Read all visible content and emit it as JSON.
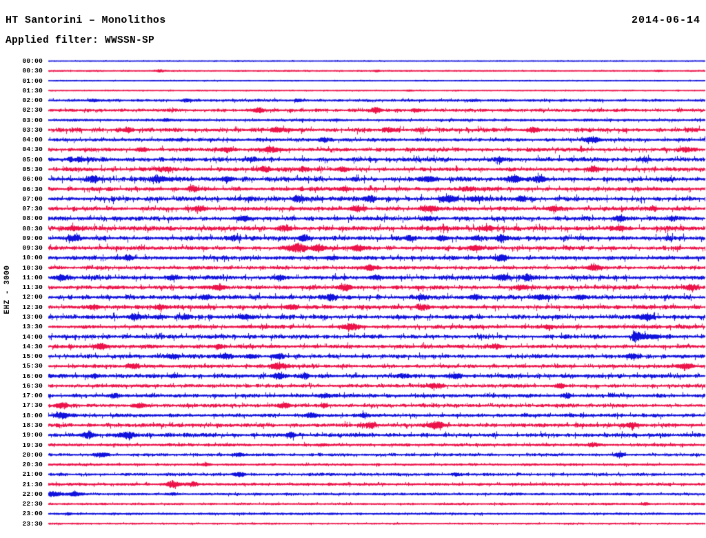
{
  "header": {
    "station_title": "HT Santorini – Monolithos",
    "date": "2014-06-14",
    "filter_label": "Applied filter: WWSSN-SP"
  },
  "axis": {
    "left_label": "EHZ - 3000"
  },
  "chart_data": {
    "type": "line",
    "subtype": "helicorder-seismogram",
    "title": "HT Santorini - Monolithos",
    "station": "Santorini - Monolithos",
    "network": "HT",
    "channel": "EHZ",
    "gain": "3000",
    "date": "2014-06-14",
    "filter": "WWSSN-SP",
    "row_interval_minutes": 30,
    "x_range_minutes": [
      0,
      30
    ],
    "legend_position": "none",
    "grid": false,
    "colors": {
      "blue": "#0f10dc",
      "red": "#ec1148",
      "text": "#000000",
      "background": "#ffffff"
    },
    "rows": [
      {
        "t": "00:00",
        "c": "b",
        "n": 0.2,
        "ev": []
      },
      {
        "t": "00:30",
        "c": "r",
        "n": 0.3,
        "ev": [
          [
            0.17,
            1.5,
            4
          ],
          [
            0.5,
            1.2,
            3
          ],
          [
            0.93,
            1.0,
            3
          ]
        ]
      },
      {
        "t": "01:00",
        "c": "b",
        "n": 0.2,
        "ev": []
      },
      {
        "t": "01:30",
        "c": "r",
        "n": 0.25,
        "ev": [
          [
            0.55,
            0.8,
            3
          ]
        ]
      },
      {
        "t": "02:00",
        "c": "b",
        "n": 0.8,
        "ev": [
          [
            0.07,
            1.5,
            5
          ],
          [
            0.21,
            1.5,
            4
          ],
          [
            0.38,
            1.5,
            4
          ],
          [
            0.65,
            1.0,
            4
          ]
        ]
      },
      {
        "t": "02:30",
        "c": "r",
        "n": 1.0,
        "ev": [
          [
            0.32,
            3.0,
            6
          ],
          [
            0.5,
            3.5,
            5
          ],
          [
            0.56,
            2.5,
            5
          ]
        ]
      },
      {
        "t": "03:00",
        "c": "b",
        "n": 0.8,
        "ev": [
          [
            0.18,
            1.5,
            5
          ],
          [
            0.44,
            1.2,
            4
          ]
        ]
      },
      {
        "t": "03:30",
        "c": "r",
        "n": 1.6,
        "ev": [
          [
            0.12,
            2.0,
            6
          ],
          [
            0.35,
            2.0,
            8
          ],
          [
            0.52,
            2.0,
            6
          ],
          [
            0.74,
            2.2,
            6
          ]
        ]
      },
      {
        "t": "04:00",
        "c": "b",
        "n": 1.2,
        "ev": [
          [
            0.42,
            2.0,
            6
          ],
          [
            0.83,
            3.5,
            7
          ]
        ]
      },
      {
        "t": "04:30",
        "c": "r",
        "n": 1.4,
        "ev": [
          [
            0.14,
            2.0,
            5
          ],
          [
            0.27,
            2.5,
            6
          ],
          [
            0.34,
            3.5,
            7
          ],
          [
            0.97,
            2.5,
            6
          ]
        ]
      },
      {
        "t": "05:00",
        "c": "b",
        "n": 1.6,
        "ev": [
          [
            0.05,
            2.0,
            10
          ],
          [
            0.31,
            2.0,
            6
          ],
          [
            0.69,
            2.0,
            6
          ],
          [
            0.91,
            2.0,
            5
          ]
        ]
      },
      {
        "t": "05:30",
        "c": "r",
        "n": 1.5,
        "ev": [
          [
            0.18,
            3.0,
            6
          ],
          [
            0.33,
            3.0,
            6
          ],
          [
            0.39,
            2.5,
            5
          ],
          [
            0.45,
            2.5,
            5
          ],
          [
            0.83,
            3.0,
            6
          ]
        ]
      },
      {
        "t": "06:00",
        "c": "b",
        "n": 1.8,
        "ev": [
          [
            0.07,
            3.5,
            7
          ],
          [
            0.17,
            3.5,
            8
          ],
          [
            0.27,
            2.5,
            6
          ],
          [
            0.58,
            3.5,
            7
          ],
          [
            0.71,
            4.0,
            8
          ],
          [
            0.75,
            3.5,
            6
          ]
        ]
      },
      {
        "t": "06:30",
        "c": "r",
        "n": 1.5,
        "ev": [
          [
            0.22,
            3.5,
            6
          ],
          [
            0.45,
            2.5,
            6
          ],
          [
            0.64,
            2.0,
            6
          ]
        ]
      },
      {
        "t": "07:00",
        "c": "b",
        "n": 1.8,
        "ev": [
          [
            0.38,
            3.0,
            6
          ],
          [
            0.49,
            3.5,
            6
          ],
          [
            0.61,
            4.5,
            8
          ],
          [
            0.65,
            3.5,
            6
          ],
          [
            0.72,
            3.0,
            5
          ]
        ]
      },
      {
        "t": "07:30",
        "c": "r",
        "n": 1.5,
        "ev": [
          [
            0.23,
            3.0,
            6
          ],
          [
            0.47,
            3.5,
            6
          ],
          [
            0.58,
            3.5,
            7
          ],
          [
            0.77,
            3.5,
            6
          ],
          [
            0.92,
            2.5,
            5
          ]
        ]
      },
      {
        "t": "08:00",
        "c": "b",
        "n": 1.6,
        "ev": [
          [
            0.3,
            2.5,
            6
          ],
          [
            0.58,
            2.5,
            6
          ],
          [
            0.87,
            3.0,
            6
          ],
          [
            0.95,
            2.5,
            5
          ]
        ]
      },
      {
        "t": "08:30",
        "c": "r",
        "n": 1.8,
        "ev": [
          [
            0.04,
            3.0,
            7
          ],
          [
            0.36,
            2.5,
            6
          ],
          [
            0.67,
            3.0,
            6
          ],
          [
            0.87,
            3.0,
            7
          ]
        ]
      },
      {
        "t": "09:00",
        "c": "b",
        "n": 1.8,
        "ev": [
          [
            0.04,
            3.5,
            6
          ],
          [
            0.28,
            2.5,
            5
          ],
          [
            0.39,
            3.0,
            6
          ],
          [
            0.55,
            2.5,
            5
          ],
          [
            0.6,
            3.0,
            6
          ],
          [
            0.65,
            2.5,
            5
          ],
          [
            0.69,
            3.5,
            6
          ]
        ]
      },
      {
        "t": "09:30",
        "c": "r",
        "n": 1.5,
        "ev": [
          [
            0.38,
            5.5,
            10
          ],
          [
            0.41,
            4.5,
            7
          ],
          [
            0.47,
            3.5,
            6
          ],
          [
            0.65,
            3.0,
            6
          ]
        ]
      },
      {
        "t": "10:00",
        "c": "b",
        "n": 1.5,
        "ev": [
          [
            0.12,
            2.5,
            6
          ],
          [
            0.43,
            2.5,
            6
          ],
          [
            0.69,
            3.5,
            7
          ]
        ]
      },
      {
        "t": "10:30",
        "c": "r",
        "n": 1.2,
        "ev": [
          [
            0.49,
            3.5,
            6
          ],
          [
            0.83,
            3.5,
            7
          ]
        ]
      },
      {
        "t": "11:00",
        "c": "b",
        "n": 1.6,
        "ev": [
          [
            0.02,
            3.5,
            7
          ],
          [
            0.19,
            2.5,
            6
          ],
          [
            0.35,
            2.5,
            5
          ],
          [
            0.5,
            2.5,
            5
          ],
          [
            0.69,
            3.5,
            7
          ],
          [
            0.73,
            3.0,
            5
          ]
        ]
      },
      {
        "t": "11:30",
        "c": "r",
        "n": 1.5,
        "ev": [
          [
            0.26,
            3.5,
            6
          ],
          [
            0.45,
            4.0,
            7
          ],
          [
            0.72,
            3.5,
            6
          ],
          [
            0.98,
            3.5,
            6
          ]
        ]
      },
      {
        "t": "12:00",
        "c": "b",
        "n": 1.6,
        "ev": [
          [
            0.24,
            2.5,
            5
          ],
          [
            0.43,
            3.5,
            6
          ],
          [
            0.57,
            2.5,
            5
          ],
          [
            0.65,
            2.5,
            5
          ],
          [
            0.75,
            3.5,
            6
          ],
          [
            0.81,
            3.5,
            6
          ]
        ]
      },
      {
        "t": "12:30",
        "c": "r",
        "n": 1.5,
        "ev": [
          [
            0.07,
            3.0,
            6
          ],
          [
            0.17,
            2.5,
            5
          ],
          [
            0.37,
            3.0,
            6
          ],
          [
            0.57,
            3.0,
            6
          ]
        ]
      },
      {
        "t": "13:00",
        "c": "b",
        "n": 1.6,
        "ev": [
          [
            0.13,
            3.5,
            6
          ],
          [
            0.17,
            2.5,
            5
          ],
          [
            0.21,
            2.5,
            5
          ],
          [
            0.3,
            3.5,
            6
          ],
          [
            0.91,
            4.0,
            7
          ]
        ]
      },
      {
        "t": "13:30",
        "c": "r",
        "n": 1.4,
        "ev": [
          [
            0.46,
            4.5,
            8
          ],
          [
            0.76,
            2.5,
            5
          ]
        ]
      },
      {
        "t": "14:00",
        "c": "b",
        "n": 1.5,
        "ev": [
          [
            0.89,
            8.0,
            0
          ]
        ]
      },
      {
        "t": "14:30",
        "c": "r",
        "n": 1.4,
        "ev": [
          [
            0.08,
            3.5,
            7
          ],
          [
            0.26,
            2.5,
            5
          ],
          [
            0.68,
            2.5,
            6
          ]
        ]
      },
      {
        "t": "15:00",
        "c": "b",
        "n": 1.5,
        "ev": [
          [
            0.19,
            2.5,
            5
          ],
          [
            0.27,
            3.0,
            6
          ],
          [
            0.31,
            2.5,
            5
          ],
          [
            0.35,
            3.0,
            5
          ],
          [
            0.89,
            3.5,
            6
          ]
        ]
      },
      {
        "t": "15:30",
        "c": "r",
        "n": 1.2,
        "ev": [
          [
            0.13,
            3.0,
            6
          ],
          [
            0.35,
            4.0,
            7
          ],
          [
            0.97,
            4.0,
            7
          ]
        ]
      },
      {
        "t": "16:00",
        "c": "b",
        "n": 1.5,
        "ev": [
          [
            0.0,
            2.5,
            5
          ],
          [
            0.07,
            2.5,
            5
          ],
          [
            0.19,
            2.5,
            5
          ],
          [
            0.35,
            4.0,
            7
          ],
          [
            0.39,
            3.0,
            5
          ],
          [
            0.54,
            2.5,
            5
          ],
          [
            0.62,
            3.0,
            6
          ]
        ]
      },
      {
        "t": "16:30",
        "c": "r",
        "n": 1.2,
        "ev": [
          [
            0.59,
            3.0,
            6
          ],
          [
            0.78,
            2.5,
            5
          ]
        ]
      },
      {
        "t": "17:00",
        "c": "b",
        "n": 1.3,
        "ev": [
          [
            0.1,
            2.0,
            5
          ],
          [
            0.42,
            2.0,
            5
          ],
          [
            0.79,
            2.0,
            5
          ]
        ]
      },
      {
        "t": "17:30",
        "c": "r",
        "n": 1.2,
        "ev": [
          [
            0.02,
            3.5,
            6
          ],
          [
            0.14,
            3.0,
            6
          ],
          [
            0.36,
            3.0,
            6
          ],
          [
            0.42,
            2.5,
            4
          ]
        ]
      },
      {
        "t": "18:00",
        "c": "b",
        "n": 1.3,
        "ev": [
          [
            0.02,
            4.0,
            7
          ],
          [
            0.4,
            3.5,
            6
          ],
          [
            0.48,
            2.5,
            5
          ]
        ]
      },
      {
        "t": "18:30",
        "c": "r",
        "n": 1.4,
        "ev": [
          [
            0.49,
            3.5,
            6
          ],
          [
            0.59,
            4.5,
            8
          ],
          [
            0.89,
            3.5,
            6
          ]
        ]
      },
      {
        "t": "19:00",
        "c": "b",
        "n": 1.5,
        "ev": [
          [
            0.06,
            4.0,
            7
          ],
          [
            0.12,
            4.0,
            8
          ],
          [
            0.37,
            2.5,
            5
          ]
        ]
      },
      {
        "t": "19:30",
        "c": "r",
        "n": 0.9,
        "ev": [
          [
            0.42,
            1.5,
            4
          ],
          [
            0.83,
            2.5,
            5
          ]
        ]
      },
      {
        "t": "20:00",
        "c": "b",
        "n": 0.9,
        "ev": [
          [
            0.08,
            2.5,
            6
          ],
          [
            0.29,
            2.5,
            5
          ],
          [
            0.87,
            2.5,
            5
          ]
        ]
      },
      {
        "t": "20:30",
        "c": "r",
        "n": 0.7,
        "ev": [
          [
            0.24,
            1.5,
            4
          ]
        ]
      },
      {
        "t": "21:00",
        "c": "b",
        "n": 0.9,
        "ev": [
          [
            0.29,
            3.0,
            5
          ],
          [
            0.62,
            1.5,
            4
          ]
        ]
      },
      {
        "t": "21:30",
        "c": "r",
        "n": 0.9,
        "ev": [
          [
            0.19,
            4.5,
            7
          ],
          [
            0.22,
            3.0,
            5
          ]
        ]
      },
      {
        "t": "22:00",
        "c": "b",
        "n": 0.7,
        "ev": [
          [
            0.005,
            3.5,
            9
          ],
          [
            0.04,
            3.0,
            7
          ],
          [
            0.19,
            1.5,
            3
          ]
        ]
      },
      {
        "t": "22:30",
        "c": "r",
        "n": 0.6,
        "ev": [
          [
            0.91,
            1.5,
            4
          ]
        ]
      },
      {
        "t": "23:00",
        "c": "b",
        "n": 0.6,
        "ev": [
          [
            0.03,
            1.0,
            3
          ]
        ]
      },
      {
        "t": "23:30",
        "c": "r",
        "n": 0.4,
        "ev": []
      }
    ]
  }
}
